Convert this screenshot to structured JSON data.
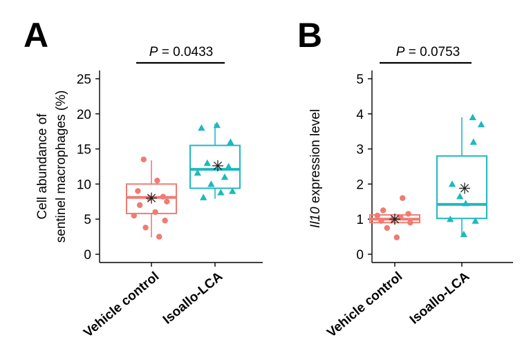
{
  "chart_data": [
    {
      "type": "box",
      "panel_label": "A",
      "ylabel": [
        "Cell abundance of",
        "sentinel macrophages (%)"
      ],
      "ylim": [
        0,
        25
      ],
      "yticks": [
        0,
        5,
        10,
        15,
        20,
        25
      ],
      "categories": [
        "Vehicle control",
        "Isoallo-LCA"
      ],
      "pvalue": {
        "prefix": "P",
        "text": " = 0.0433"
      },
      "groups": [
        {
          "category": "Vehicle control",
          "color": "#F07B72",
          "marker": "circle",
          "whisker_low": 2.4,
          "q1": 5.8,
          "median": 8.1,
          "q3": 10.0,
          "whisker_high": 13.4,
          "mean": 8.0,
          "points": [
            13.5,
            10.5,
            9.0,
            8.2,
            8.0,
            7.5,
            7.0,
            6.0,
            5.5,
            4.8,
            3.8,
            2.5
          ]
        },
        {
          "category": "Isoallo-LCA",
          "color": "#1FB8BF",
          "marker": "triangle",
          "whisker_low": 7.9,
          "q1": 9.4,
          "median": 12.1,
          "q3": 15.5,
          "whisker_high": 18.6,
          "mean": 12.6,
          "points": [
            18.4,
            18.0,
            16.0,
            13.0,
            12.5,
            11.6,
            11.0,
            10.0,
            9.0,
            8.8,
            8.1
          ]
        }
      ]
    },
    {
      "type": "box",
      "panel_label": "B",
      "ylabel": {
        "italic": "Il10",
        "rest": " expression level"
      },
      "ylim": [
        0,
        5
      ],
      "yticks": [
        0,
        1,
        2,
        3,
        4,
        5
      ],
      "categories": [
        "Vehicle control",
        "Isoallo-LCA"
      ],
      "pvalue": {
        "prefix": "P",
        "text": " = 0.0753"
      },
      "groups": [
        {
          "category": "Vehicle control",
          "color": "#F07B72",
          "marker": "circle",
          "whisker_low": 0.85,
          "q1": 0.9,
          "median": 1.0,
          "q3": 1.12,
          "whisker_high": 1.15,
          "mean": 1.0,
          "points": [
            1.6,
            1.25,
            1.15,
            1.1,
            1.05,
            1.0,
            0.95,
            0.9,
            0.75,
            0.48
          ]
        },
        {
          "category": "Isoallo-LCA",
          "color": "#1FB8BF",
          "marker": "triangle",
          "whisker_low": 0.55,
          "q1": 1.02,
          "median": 1.42,
          "q3": 2.8,
          "whisker_high": 3.9,
          "mean": 1.88,
          "points": [
            3.9,
            3.7,
            3.2,
            2.0,
            1.65,
            1.45,
            1.0,
            0.95,
            0.57
          ]
        }
      ]
    }
  ]
}
